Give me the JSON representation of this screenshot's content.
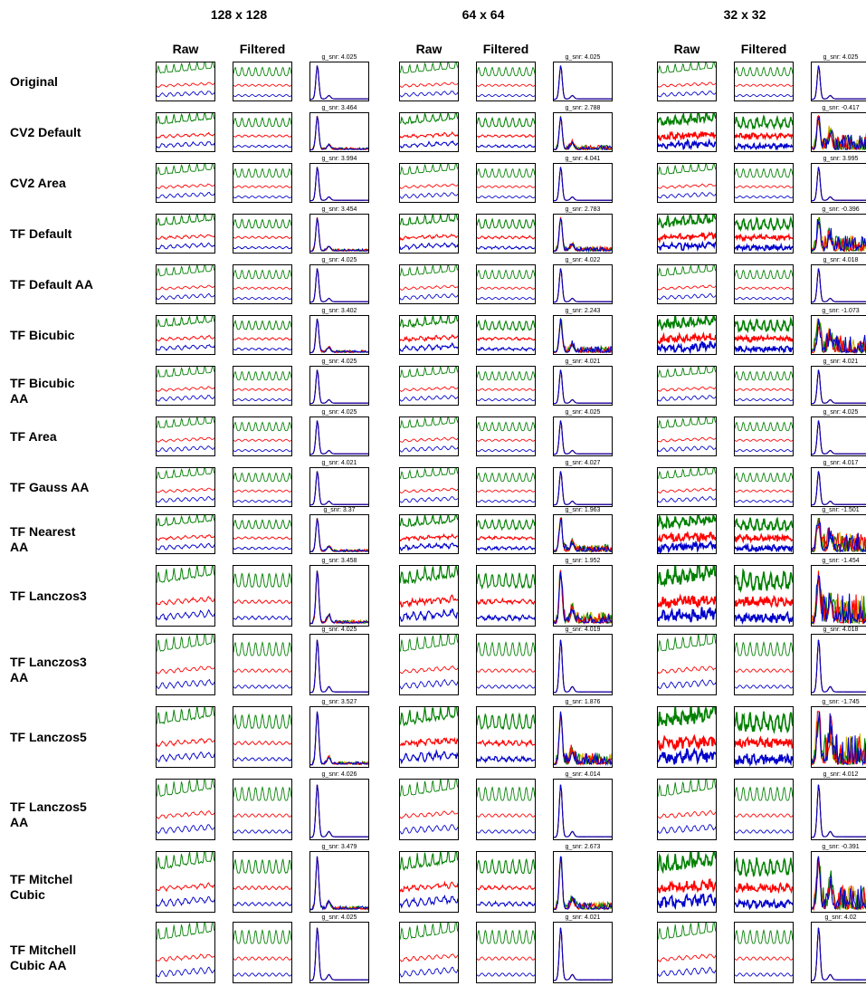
{
  "resolutions": [
    "128 x 128",
    "64 x 64",
    "32 x 32"
  ],
  "column_headers": {
    "raw": "Raw",
    "filtered": "Filtered"
  },
  "colors": {
    "green": "#008000",
    "red": "#ff0000",
    "blue": "#0000cc",
    "yellow": "#c8b400"
  },
  "chart_data": {
    "type": "line",
    "title": "",
    "snr_label_prefix": "g_snr: ",
    "methods": [
      "Original",
      "CV2 Default",
      "CV2 Area",
      "TF Default",
      "TF Default AA",
      "TF Bicubic",
      "TF Bicubic\nAA",
      "TF Area",
      "TF Gauss AA",
      "TF Nearest\nAA",
      "TF Lanczos3",
      "TF Lanczos3\nAA",
      "TF Lanczos5",
      "TF Lanczos5\nAA",
      "TF Mitchel\nCubic",
      "TF Mitchell\nCubic AA"
    ],
    "g_snr": [
      [
        "4.025",
        "4.025",
        "4.025"
      ],
      [
        "3.464",
        "2.788",
        "-0.417"
      ],
      [
        "3.994",
        "4.041",
        "3.995"
      ],
      [
        "3.454",
        "2.783",
        "-0.396"
      ],
      [
        "4.025",
        "4.022",
        "4.018"
      ],
      [
        "3.402",
        "2.243",
        "-1.073"
      ],
      [
        "4.025",
        "4.021",
        "4.021"
      ],
      [
        "4.025",
        "4.025",
        "4.025"
      ],
      [
        "4.021",
        "4.027",
        "4.017"
      ],
      [
        "3.37",
        "1.963",
        "-1.501"
      ],
      [
        "3.458",
        "1.952",
        "-1.454"
      ],
      [
        "4.025",
        "4.019",
        "4.018"
      ],
      [
        "3.527",
        "1.876",
        "-1.745"
      ],
      [
        "4.026",
        "4.014",
        "4.012"
      ],
      [
        "3.479",
        "2.673",
        "-0.391"
      ],
      [
        "4.025",
        "4.021",
        "4.02"
      ]
    ]
  }
}
